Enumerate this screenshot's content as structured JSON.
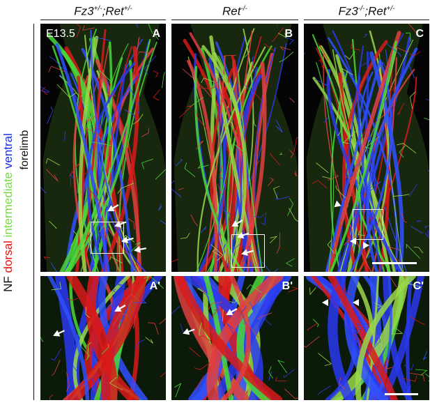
{
  "columns": [
    {
      "genotype_html": "Fz3<sup>+/-</sup>;Ret<sup>+/-</sup>",
      "top_letter": "A",
      "bottom_letter": "A'"
    },
    {
      "genotype_html": "Ret<sup>-/-</sup>",
      "top_letter": "B",
      "bottom_letter": "B'"
    },
    {
      "genotype_html": "Fz3<sup>-/-</sup>;Ret<sup>+/-</sup>",
      "top_letter": "C",
      "bottom_letter": "C'"
    }
  ],
  "stage_label": "E13.5",
  "side_label": {
    "nf": "NF",
    "dorsal": "dorsal",
    "intermediate": "intermediate",
    "ventral": "ventral",
    "colors": {
      "nf": "#111111",
      "dorsal": "#e01010",
      "intermediate": "#7ad64a",
      "ventral": "#1a2ee0"
    }
  },
  "forelimb_label": "forelimb"
}
